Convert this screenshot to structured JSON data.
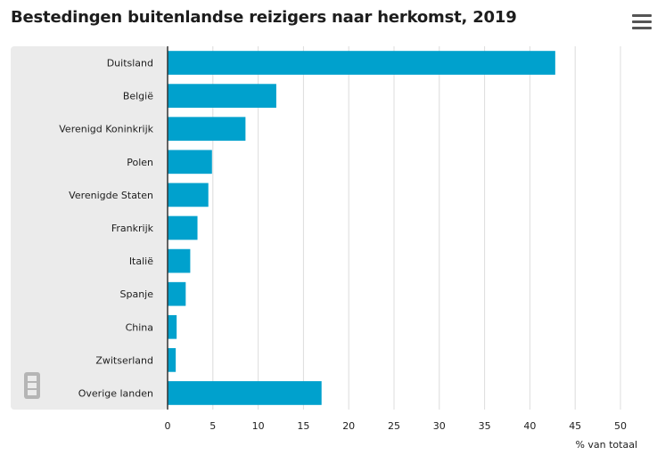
{
  "title": "Bestedingen buitenlandse reizigers naar herkomst, 2019",
  "menu_icon": "hamburger-menu-icon",
  "logo_icon": "cbs-logo-icon",
  "colors": {
    "bar": "#00a1cd",
    "label_panel": "#ebebeb",
    "grid": "#dcdcdc",
    "axis": "#333333"
  },
  "chart_data": {
    "type": "bar",
    "orientation": "horizontal",
    "title": "Bestedingen buitenlandse reizigers naar herkomst, 2019",
    "categories": [
      "Duitsland",
      "België",
      "Verenigd Koninkrijk",
      "Polen",
      "Verenigde Staten",
      "Frankrijk",
      "Italië",
      "Spanje",
      "China",
      "Zwitserland",
      "Overige landen"
    ],
    "values": [
      42.8,
      12.0,
      8.6,
      4.9,
      4.5,
      3.3,
      2.5,
      2.0,
      1.0,
      0.9,
      17.0
    ],
    "xlabel": "% van totaal",
    "xlim": [
      0,
      50
    ],
    "xticks": [
      0,
      5,
      10,
      15,
      20,
      25,
      30,
      35,
      40,
      45,
      50
    ],
    "grid": true,
    "legend": "none"
  }
}
